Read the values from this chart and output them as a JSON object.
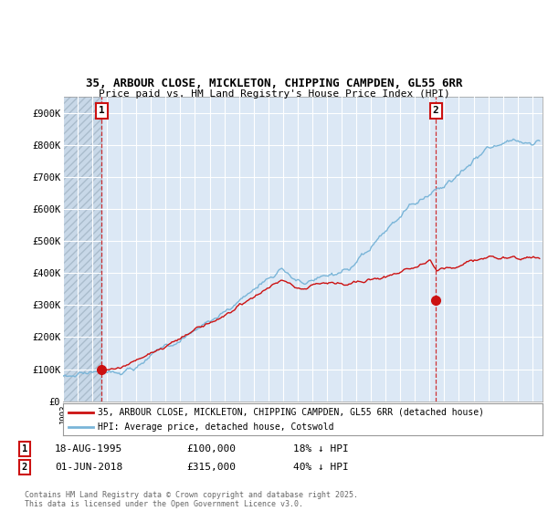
{
  "title_line1": "35, ARBOUR CLOSE, MICKLETON, CHIPPING CAMPDEN, GL55 6RR",
  "title_line2": "Price paid vs. HM Land Registry's House Price Index (HPI)",
  "ylim": [
    0,
    950000
  ],
  "yticks": [
    0,
    100000,
    200000,
    300000,
    400000,
    500000,
    600000,
    700000,
    800000,
    900000
  ],
  "ytick_labels": [
    "£0",
    "£100K",
    "£200K",
    "£300K",
    "£400K",
    "£500K",
    "£600K",
    "£700K",
    "£800K",
    "£900K"
  ],
  "hpi_color": "#7ab5d8",
  "price_color": "#cc1111",
  "marker1_date": 1995.63,
  "marker1_price": 100000,
  "marker1_label": "1",
  "marker2_date": 2018.42,
  "marker2_price": 315000,
  "marker2_label": "2",
  "legend_line1": "35, ARBOUR CLOSE, MICKLETON, CHIPPING CAMPDEN, GL55 6RR (detached house)",
  "legend_line2": "HPI: Average price, detached house, Cotswold",
  "footnote": "Contains HM Land Registry data © Crown copyright and database right 2025.\nThis data is licensed under the Open Government Licence v3.0.",
  "background_color": "#dce8f5",
  "grid_color": "#ffffff"
}
